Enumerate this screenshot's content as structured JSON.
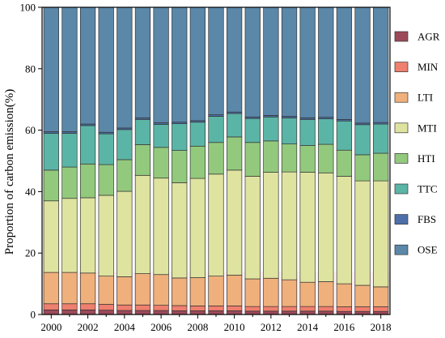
{
  "chart_data": {
    "type": "bar",
    "stacked": true,
    "ylabel": "Proportion of carbon emission(%)",
    "xlabel": "",
    "ylim": [
      0,
      100
    ],
    "yticks": [
      0,
      20,
      40,
      60,
      80,
      100
    ],
    "x_tick_labels": [
      "2000",
      "2002",
      "2004",
      "2006",
      "2008",
      "2010",
      "2012",
      "2014",
      "2016",
      "2018"
    ],
    "categories": [
      "2000",
      "2001",
      "2002",
      "2003",
      "2004",
      "2005",
      "2006",
      "2007",
      "2008",
      "2009",
      "2010",
      "2011",
      "2012",
      "2013",
      "2014",
      "2015",
      "2016",
      "2017",
      "2018"
    ],
    "legend_position": "right",
    "series": [
      {
        "name": "AGR",
        "color": "#9c4a5a",
        "values": [
          1.5,
          1.5,
          1.5,
          1.4,
          1.3,
          1.3,
          1.3,
          1.2,
          1.2,
          1.2,
          1.2,
          1.1,
          1.1,
          1.1,
          1.1,
          1.1,
          1.0,
          1.0,
          1.0
        ]
      },
      {
        "name": "MIN",
        "color": "#ef7f6e",
        "values": [
          2.0,
          2.0,
          2.0,
          1.9,
          1.8,
          1.8,
          1.7,
          1.7,
          1.6,
          1.6,
          1.6,
          1.5,
          1.5,
          1.5,
          1.5,
          1.5,
          1.5,
          1.5,
          1.5
        ]
      },
      {
        "name": "LTI",
        "color": "#efb07c",
        "values": [
          10.2,
          10.2,
          10.0,
          9.2,
          9.2,
          10.2,
          10.0,
          9.0,
          9.2,
          9.7,
          10.0,
          9.0,
          9.2,
          8.7,
          7.9,
          8.1,
          7.5,
          7.0,
          6.5
        ]
      },
      {
        "name": "MTI",
        "color": "#dfe3a0",
        "values": [
          23.3,
          24.1,
          24.5,
          26.3,
          27.8,
          32.0,
          31.4,
          31.0,
          32.3,
          33.2,
          34.2,
          33.4,
          34.5,
          35.1,
          35.8,
          35.4,
          35.0,
          34.0,
          34.5
        ]
      },
      {
        "name": "HTI",
        "color": "#93c97d",
        "values": [
          10.0,
          10.2,
          11.0,
          10.0,
          10.3,
          10.0,
          10.0,
          10.5,
          10.5,
          10.3,
          10.8,
          11.0,
          10.2,
          9.1,
          8.7,
          9.3,
          8.5,
          8.5,
          9.0
        ]
      },
      {
        "name": "TTC",
        "color": "#5bb5a6",
        "values": [
          12.0,
          11.0,
          12.5,
          10.0,
          9.8,
          8.2,
          7.5,
          8.7,
          7.8,
          8.5,
          7.6,
          7.8,
          7.8,
          8.5,
          8.5,
          8.3,
          9.5,
          9.8,
          9.5
        ]
      },
      {
        "name": "FBS",
        "color": "#4d6faa",
        "values": [
          0.5,
          0.5,
          0.5,
          0.5,
          0.5,
          0.5,
          0.5,
          0.5,
          0.5,
          0.5,
          0.5,
          0.5,
          0.5,
          0.5,
          0.5,
          0.5,
          0.5,
          0.5,
          0.5
        ]
      },
      {
        "name": "OSE",
        "color": "#5b87a8",
        "values": [
          40.5,
          40.5,
          38.0,
          40.7,
          39.3,
          36.0,
          37.6,
          37.4,
          36.9,
          35.0,
          34.1,
          35.7,
          35.2,
          35.5,
          36.0,
          35.8,
          36.5,
          37.7,
          37.5
        ]
      }
    ]
  }
}
